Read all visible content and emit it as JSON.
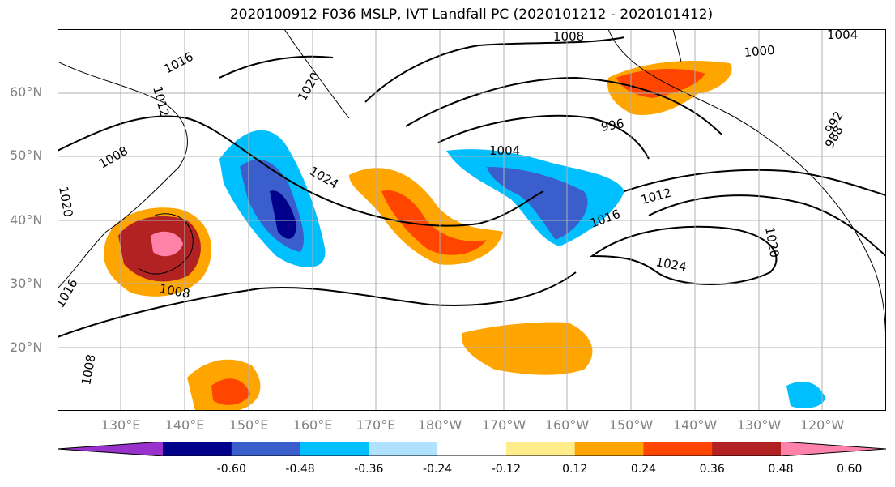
{
  "title": "2020100912 F036 MSLP, IVT Landfall PC (2020101212 - 2020101412)",
  "lat_labels": [
    "60°N",
    "50°N",
    "40°N",
    "30°N",
    "20°N"
  ],
  "lon_labels": [
    "130°E",
    "140°E",
    "150°E",
    "160°E",
    "170°E",
    "180°W",
    "170°W",
    "160°W",
    "150°W",
    "140°W",
    "130°W",
    "120°W"
  ],
  "contour_labels": [
    "1016",
    "1012",
    "1020",
    "1008",
    "1016",
    "1008",
    "1024",
    "1020",
    "1004",
    "1008",
    "1004",
    "1000",
    "996",
    "1012",
    "1016",
    "1024",
    "1020",
    "992",
    "988",
    "1008"
  ],
  "colorbar": {
    "colors": [
      "#9932cc",
      "#00008b",
      "#3a5fcd",
      "#00bfff",
      "#b0e2ff",
      "#ffffff",
      "#ffec8b",
      "#ffa500",
      "#ff4500",
      "#b22222",
      "#ff82ab"
    ],
    "tick_labels": [
      "-0.60",
      "-0.48",
      "-0.36",
      "-0.24",
      "-0.12",
      "0.12",
      "0.24",
      "0.36",
      "0.48",
      "0.60"
    ]
  }
}
